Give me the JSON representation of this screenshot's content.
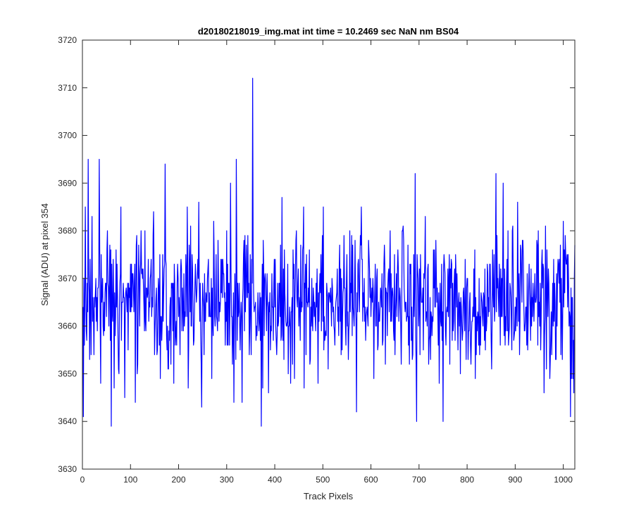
{
  "chart_data": {
    "type": "line",
    "title": "d20180218019_img.mat int time = 10.2469 sec  NaN nm BS04",
    "xlabel": "Track Pixels",
    "ylabel": "Signal (ADU) at pixel 354",
    "xlim": [
      0,
      1024
    ],
    "ylim": [
      3630,
      3720
    ],
    "xticks": [
      0,
      100,
      200,
      300,
      400,
      500,
      600,
      700,
      800,
      900,
      1000
    ],
    "yticks": [
      3630,
      3640,
      3650,
      3660,
      3670,
      3680,
      3690,
      3700,
      3710,
      3720
    ],
    "grid": false,
    "legend": "none",
    "series": [
      {
        "color": "#0000ff",
        "baseline": 3665,
        "noise_sd": 7,
        "x_start": 1,
        "x_end": 1024,
        "notable_points": [
          [
            1,
            3664
          ],
          [
            2,
            3641
          ],
          [
            6,
            3685
          ],
          [
            12,
            3695
          ],
          [
            20,
            3683
          ],
          [
            35,
            3695
          ],
          [
            38,
            3648
          ],
          [
            52,
            3680
          ],
          [
            60,
            3639
          ],
          [
            66,
            3647
          ],
          [
            80,
            3685
          ],
          [
            88,
            3645
          ],
          [
            110,
            3644
          ],
          [
            130,
            3680
          ],
          [
            172,
            3694
          ],
          [
            178,
            3651
          ],
          [
            218,
            3685
          ],
          [
            220,
            3647
          ],
          [
            248,
            3643
          ],
          [
            300,
            3680
          ],
          [
            308,
            3690
          ],
          [
            315,
            3644
          ],
          [
            320,
            3695
          ],
          [
            332,
            3644
          ],
          [
            354,
            3712
          ],
          [
            372,
            3639
          ],
          [
            375,
            3647
          ],
          [
            415,
            3687
          ],
          [
            460,
            3685
          ],
          [
            490,
            3648
          ],
          [
            570,
            3642
          ],
          [
            580,
            3685
          ],
          [
            640,
            3680
          ],
          [
            692,
            3692
          ],
          [
            695,
            3640
          ],
          [
            750,
            3640
          ],
          [
            860,
            3692
          ],
          [
            875,
            3690
          ],
          [
            905,
            3686
          ],
          [
            960,
            3646
          ],
          [
            1000,
            3682
          ],
          [
            1015,
            3641
          ],
          [
            1022,
            3646
          ]
        ]
      }
    ]
  }
}
